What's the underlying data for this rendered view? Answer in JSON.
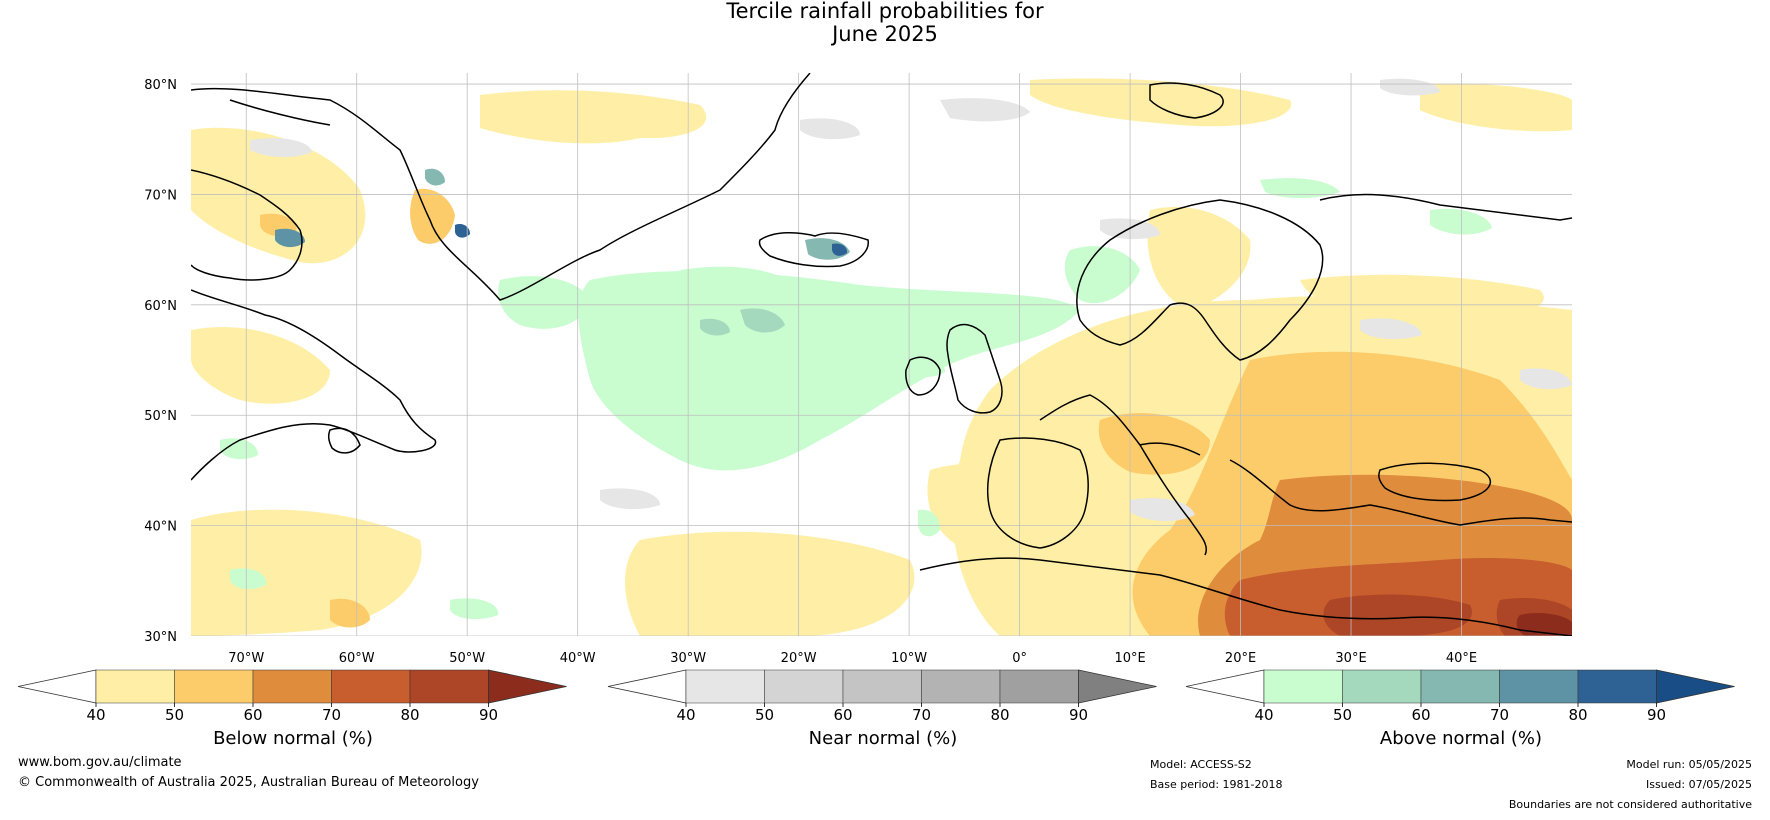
{
  "title": {
    "line1": "Tercile rainfall probabilities for",
    "line2": "June 2025"
  },
  "map": {
    "lat_labels": [
      "80°N",
      "70°N",
      "60°N",
      "50°N",
      "40°N",
      "30°N"
    ],
    "lon_labels": [
      "70°W",
      "60°W",
      "50°W",
      "40°W",
      "30°W",
      "20°W",
      "10°W",
      "0°",
      "10°E",
      "20°E",
      "30°E",
      "40°E"
    ],
    "extent": {
      "lon_min": -75,
      "lon_max": 50,
      "lat_min": 30,
      "lat_max": 81
    }
  },
  "colorbars": [
    {
      "id": "below",
      "label": "Below normal (%)",
      "ticks": [
        "40",
        "50",
        "60",
        "70",
        "80",
        "90"
      ],
      "colors": [
        "#ffefa6",
        "#fdcc6a",
        "#df8c3d",
        "#c85d2e",
        "#ad4527"
      ],
      "extend_color": "#8b2c1d"
    },
    {
      "id": "near",
      "label": "Near normal (%)",
      "ticks": [
        "40",
        "50",
        "60",
        "70",
        "80",
        "90"
      ],
      "colors": [
        "#e6e6e6",
        "#d4d4d4",
        "#c4c4c4",
        "#b3b3b3",
        "#a0a0a0"
      ],
      "extend_color": "#808080"
    },
    {
      "id": "above",
      "label": "Above normal (%)",
      "ticks": [
        "40",
        "50",
        "60",
        "70",
        "80",
        "90"
      ],
      "colors": [
        "#c9fdd0",
        "#a4d9be",
        "#84b8b1",
        "#5d93a4",
        "#2f6294"
      ],
      "extend_color": "#184d86"
    }
  ],
  "footer": {
    "website": "www.bom.gov.au/climate",
    "copyright": "© Commonwealth of Australia 2025, Australian Bureau of Meteorology",
    "model": "Model: ACCESS-S2",
    "base_period": "Base period: 1981-2018",
    "model_run": "Model run: 05/05/2025",
    "issued": "Issued: 07/05/2025",
    "disclaimer": "Boundaries are not considered authoritative"
  }
}
